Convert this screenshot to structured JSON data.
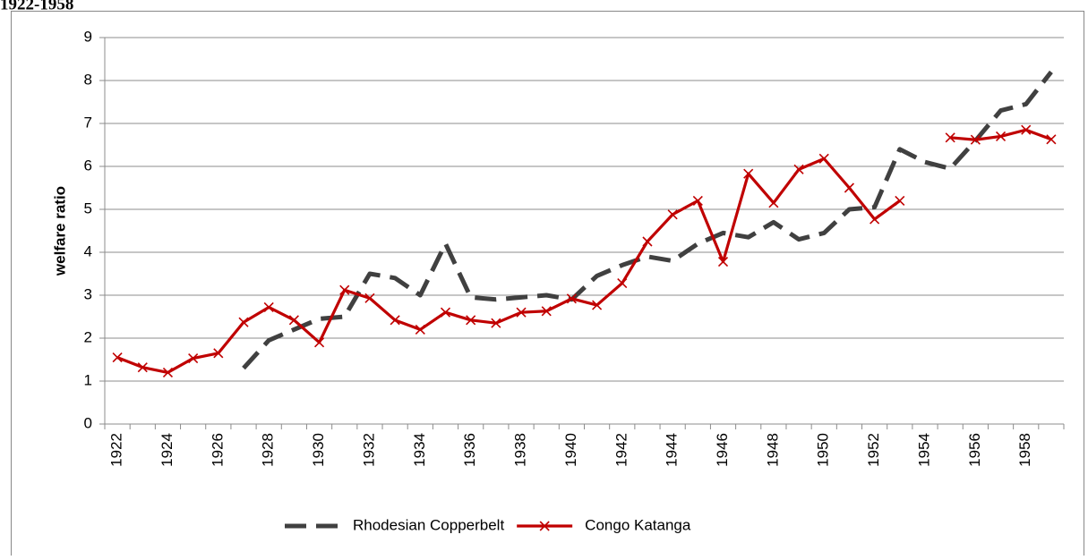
{
  "chart_data": {
    "type": "line",
    "title": "1922-1958",
    "ylabel": "welfare ratio",
    "categories": [
      "1922",
      null,
      "1924",
      null,
      "1926",
      null,
      "1928",
      null,
      "1930",
      null,
      "1932",
      null,
      "1934",
      null,
      "1936",
      null,
      "1938",
      null,
      "1940",
      null,
      "1942",
      null,
      "1944",
      null,
      "1946",
      null,
      "1948",
      null,
      "1950",
      null,
      "1952",
      null,
      "1954",
      null,
      "1956",
      null,
      "1958",
      null
    ],
    "series": [
      {
        "name": "Rhodesian Copperbelt",
        "color": "#404040",
        "style": "dashed",
        "values": [
          null,
          null,
          null,
          null,
          null,
          1.3,
          1.95,
          2.2,
          2.45,
          2.5,
          3.5,
          3.4,
          3.0,
          4.2,
          2.95,
          2.9,
          2.95,
          3.0,
          2.9,
          3.45,
          3.7,
          3.9,
          3.8,
          4.2,
          4.45,
          4.35,
          4.7,
          4.3,
          4.45,
          5.0,
          5.05,
          6.4,
          6.1,
          5.95,
          6.6,
          7.3,
          7.45,
          8.2
        ]
      },
      {
        "name": "Congo Katanga",
        "color": "#c00000",
        "style": "solid-x",
        "values": [
          1.55,
          1.32,
          1.2,
          1.53,
          1.65,
          2.37,
          2.72,
          2.42,
          1.9,
          3.12,
          2.93,
          2.42,
          2.2,
          2.6,
          2.42,
          2.35,
          2.6,
          2.63,
          2.92,
          2.77,
          3.28,
          4.25,
          4.88,
          5.2,
          3.78,
          5.83,
          5.15,
          5.93,
          6.18,
          5.5,
          4.77,
          5.2,
          null,
          6.67,
          6.62,
          6.7,
          6.85,
          6.63
        ]
      }
    ],
    "ylim": [
      0,
      9
    ],
    "yticks": [
      0,
      1,
      2,
      3,
      4,
      5,
      6,
      7,
      8,
      9
    ],
    "grid": true,
    "legend": "bottom"
  }
}
